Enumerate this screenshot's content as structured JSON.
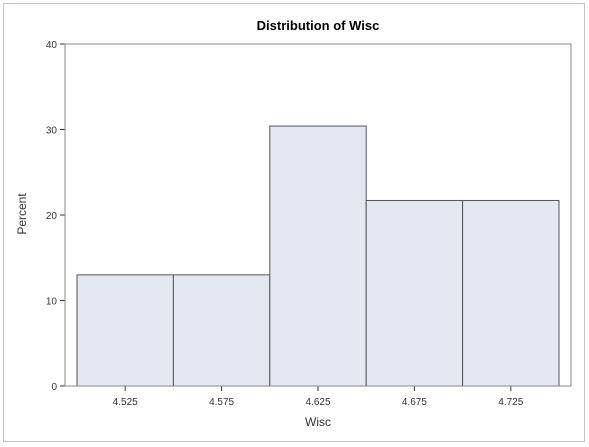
{
  "chart_data": {
    "type": "bar",
    "title": "Distribution of Wisc",
    "xlabel": "Wisc",
    "ylabel": "Percent",
    "categories": [
      "4.525",
      "4.575",
      "4.625",
      "4.675",
      "4.725"
    ],
    "values": [
      13.0,
      13.0,
      30.4,
      21.7,
      21.7
    ],
    "yticks": [
      "0",
      "10",
      "20",
      "30",
      "40"
    ],
    "ylim": [
      0,
      40
    ],
    "grid": false,
    "colors": {
      "bar_fill": "#e4e8f1",
      "bar_edge": "#555555"
    }
  }
}
